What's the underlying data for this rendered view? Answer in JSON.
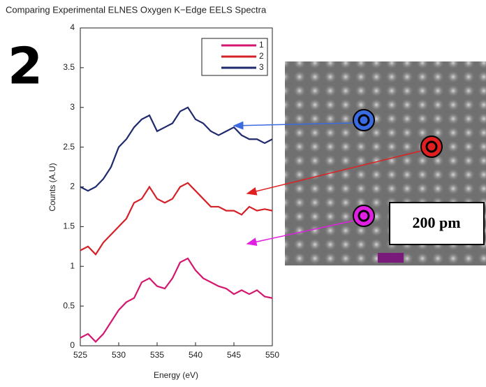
{
  "chart_data": {
    "type": "line",
    "title": "Comparing Experimental ELNES Oxygen K−Edge EELS Spectra",
    "x_label": "Energy (eV)",
    "y_label": "Counts (A.U)",
    "panel_label": "2",
    "scale_label": "200 pm",
    "x": [
      525,
      526,
      527,
      528,
      529,
      530,
      531,
      532,
      533,
      534,
      535,
      536,
      537,
      538,
      539,
      540,
      541,
      542,
      543,
      544,
      545,
      546,
      547,
      548,
      549,
      550
    ],
    "series": [
      {
        "name": "1",
        "color": "#d4166f",
        "values": [
          0.1,
          0.15,
          0.05,
          0.15,
          0.3,
          0.45,
          0.55,
          0.6,
          0.8,
          0.85,
          0.75,
          0.72,
          0.85,
          1.05,
          1.1,
          0.95,
          0.85,
          0.8,
          0.75,
          0.72,
          0.65,
          0.7,
          0.65,
          0.7,
          0.62,
          0.6
        ]
      },
      {
        "name": "2",
        "color": "#d42027",
        "values": [
          1.2,
          1.25,
          1.15,
          1.3,
          1.4,
          1.5,
          1.6,
          1.8,
          1.85,
          2.0,
          1.85,
          1.8,
          1.85,
          2.0,
          2.05,
          1.95,
          1.85,
          1.75,
          1.75,
          1.7,
          1.7,
          1.65,
          1.75,
          1.7,
          1.72,
          1.7
        ]
      },
      {
        "name": "3",
        "color": "#1f2a6e",
        "values": [
          2.0,
          1.95,
          2.0,
          2.1,
          2.25,
          2.5,
          2.6,
          2.75,
          2.85,
          2.9,
          2.7,
          2.75,
          2.8,
          2.95,
          3.0,
          2.85,
          2.8,
          2.7,
          2.65,
          2.7,
          2.75,
          2.65,
          2.6,
          2.6,
          2.55,
          2.6
        ]
      }
    ],
    "xlim": [
      525,
      550
    ],
    "xticks": [
      525,
      530,
      535,
      540,
      545,
      550
    ],
    "ylim": [
      0,
      4
    ],
    "yticks": [
      0,
      0.5,
      1,
      1.5,
      2,
      2.5,
      3,
      3.5,
      4
    ],
    "legend": "upper right"
  }
}
